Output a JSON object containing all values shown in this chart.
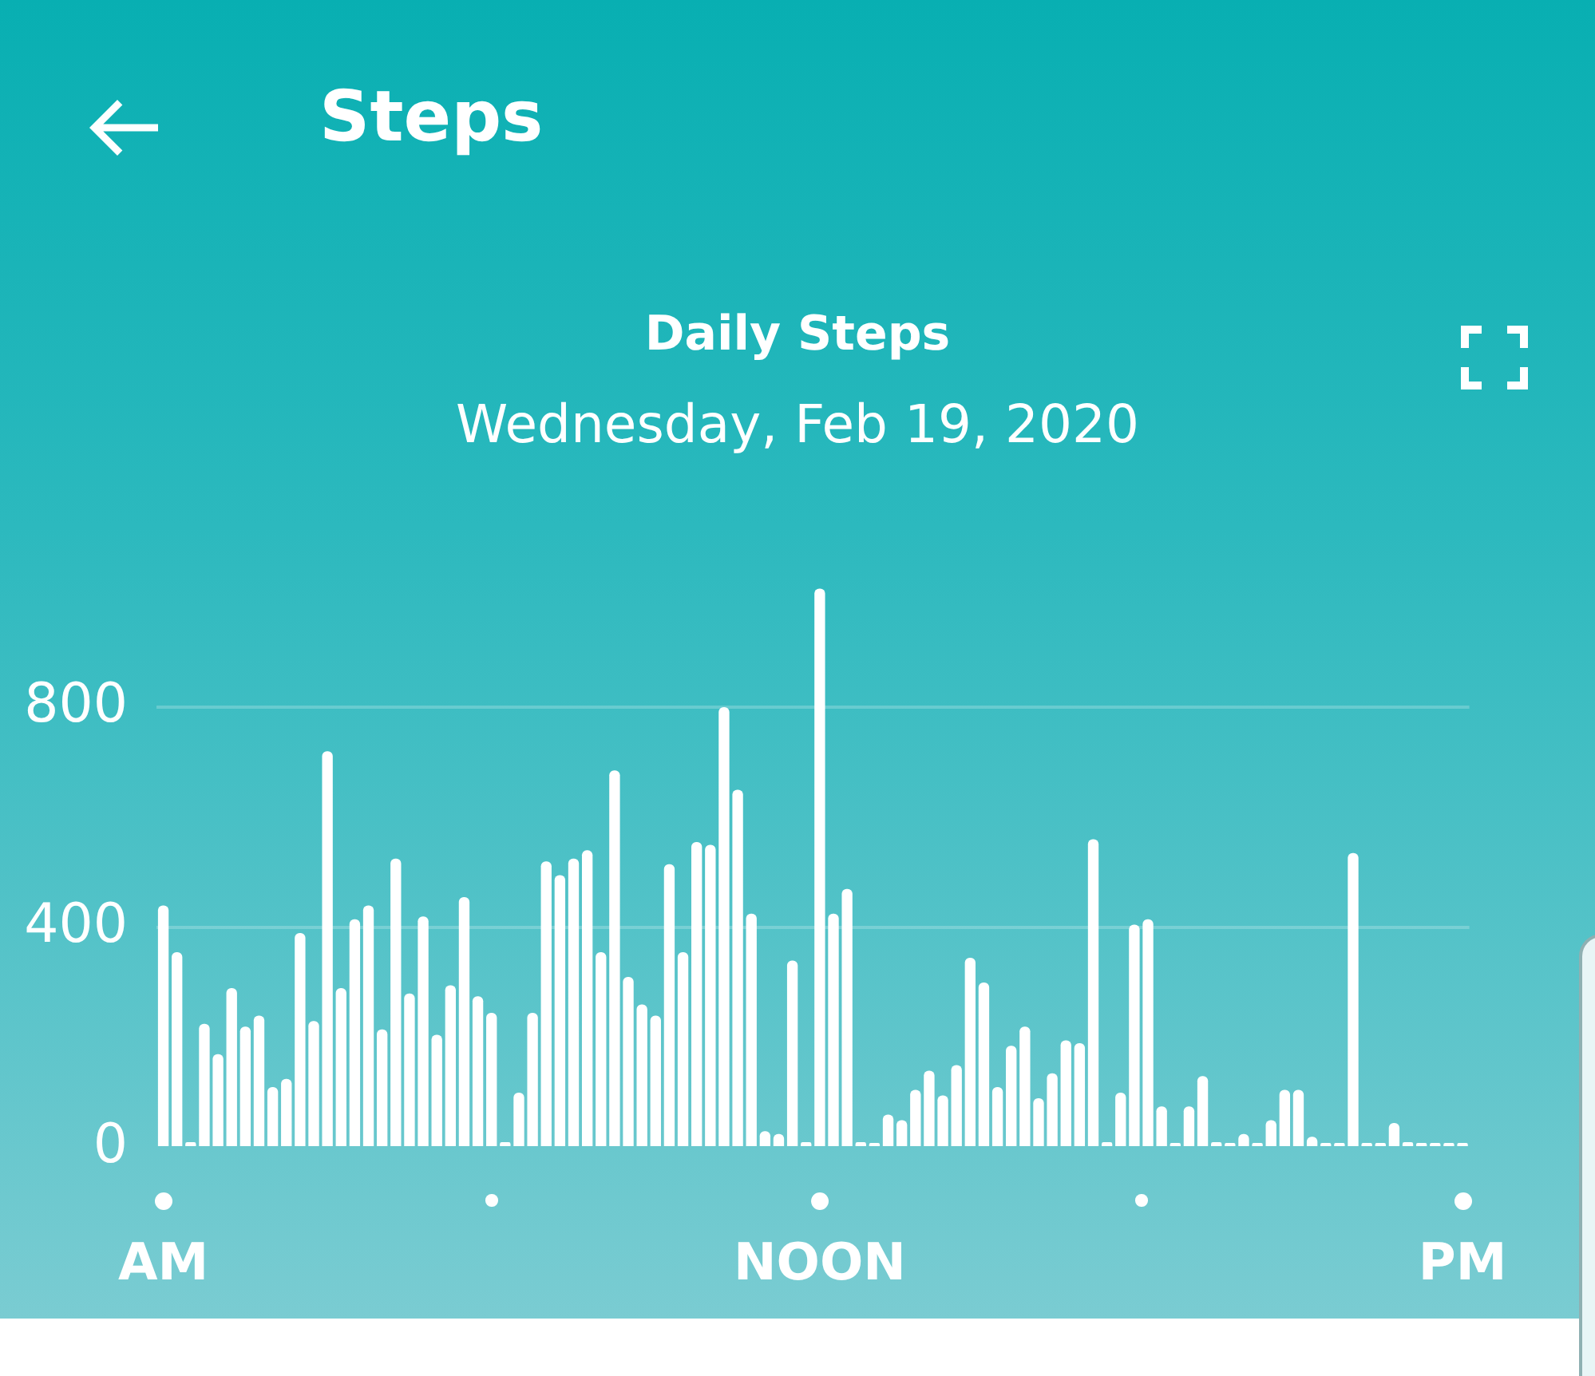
{
  "chart_data": {
    "type": "bar",
    "title": "Daily Steps",
    "subtitle": "Wednesday, Feb 19, 2020",
    "annotations": [
      "Steps"
    ],
    "categories": [
      "AM",
      null,
      null,
      null,
      null,
      null,
      null,
      null,
      null,
      null,
      null,
      null,
      null,
      null,
      null,
      null,
      null,
      null,
      null,
      null,
      null,
      null,
      null,
      null,
      null,
      null,
      null,
      null,
      null,
      null,
      null,
      null,
      null,
      null,
      null,
      null,
      null,
      null,
      null,
      null,
      null,
      null,
      null,
      null,
      null,
      null,
      null,
      null,
      "NOON",
      null,
      null,
      null,
      null,
      null,
      null,
      null,
      null,
      null,
      null,
      null,
      null,
      null,
      null,
      null,
      null,
      null,
      null,
      null,
      null,
      null,
      null,
      null,
      null,
      null,
      null,
      null,
      null,
      null,
      null,
      null,
      null,
      null,
      null,
      null,
      null,
      null,
      null,
      null,
      null,
      null,
      null,
      null,
      null,
      null,
      null,
      "PM"
    ],
    "values": [
      440,
      355,
      10,
      225,
      170,
      290,
      220,
      240,
      110,
      125,
      390,
      230,
      720,
      290,
      415,
      440,
      215,
      525,
      280,
      420,
      205,
      295,
      455,
      275,
      245,
      10,
      100,
      245,
      520,
      495,
      525,
      540,
      355,
      685,
      310,
      260,
      240,
      515,
      355,
      555,
      550,
      800,
      650,
      425,
      30,
      25,
      340,
      10,
      1015,
      425,
      470,
      10,
      0,
      60,
      50,
      105,
      140,
      95,
      150,
      345,
      300,
      110,
      185,
      220,
      90,
      135,
      195,
      190,
      560,
      10,
      100,
      405,
      415,
      75,
      0,
      75,
      130,
      10,
      0,
      25,
      0,
      50,
      105,
      105,
      20,
      0,
      0,
      535,
      0,
      0,
      45,
      10,
      0,
      0,
      0,
      0
    ],
    "color": "#ffffff",
    "ylim": [
      0,
      1015
    ],
    "yticks": [
      0,
      400,
      800
    ],
    "grid": "y"
  }
}
